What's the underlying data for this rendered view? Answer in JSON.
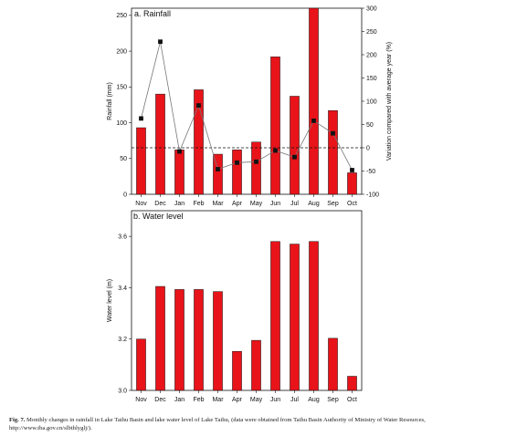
{
  "chart_data": [
    {
      "type": "bar",
      "title": "a. Rainfall",
      "categories": [
        "Nov",
        "Dec",
        "Jan",
        "Feb",
        "Mar",
        "Apr",
        "May",
        "Jun",
        "Jul",
        "Aug",
        "Sep",
        "Oct"
      ],
      "ylabel": "Rainfall (mm)",
      "y2label": "Variation compared with average year (%)",
      "ylim": [
        0,
        260
      ],
      "yticks": [
        "0",
        "50",
        "100",
        "150",
        "200",
        "250"
      ],
      "y2lim": [
        -100,
        300
      ],
      "y2ticks": [
        "-100",
        "-50",
        "0",
        "50",
        "100",
        "150",
        "200",
        "250",
        "300"
      ],
      "reference_line": {
        "axis": "y2",
        "value": 0,
        "style": "dashed"
      },
      "series": [
        {
          "type": "bar",
          "axis": "y",
          "color": "#e8141a",
          "values": [
            93,
            140,
            62,
            146,
            56,
            62,
            73,
            192,
            137,
            260,
            117,
            30
          ]
        },
        {
          "type": "line",
          "axis": "y2",
          "marker": "square",
          "color": "#777777",
          "marker_color": "#111111",
          "values": [
            63,
            228,
            -8,
            91,
            -46,
            -32,
            -30,
            -6,
            -20,
            58,
            31,
            -48
          ]
        }
      ]
    },
    {
      "type": "bar",
      "title": "b. Water level",
      "categories": [
        "Nov",
        "Dec",
        "Jan",
        "Feb",
        "Mar",
        "Apr",
        "May",
        "Jun",
        "Jul",
        "Aug",
        "Sep",
        "Oct"
      ],
      "ylabel": "Water level (m)",
      "ylim": [
        3.0,
        3.7
      ],
      "yticks": [
        "3.0",
        "3.2",
        "3.4",
        "3.6"
      ],
      "series": [
        {
          "type": "bar",
          "axis": "y",
          "color": "#e8141a",
          "values": [
            3.2,
            3.405,
            3.393,
            3.393,
            3.385,
            3.152,
            3.195,
            3.58,
            3.57,
            3.58,
            3.203,
            3.055
          ]
        }
      ]
    }
  ],
  "caption": {
    "label": "Fig. 7.",
    "text": " Monthly changes in rainfall in Lake Taihu Basin and lake water level of Lake Taihu, (data were obtained from Taihu Basin Authority of Ministry of Water Resources, ",
    "link": "http://www.tba.gov.cn/slbthlyglj/",
    "tail": ")."
  }
}
